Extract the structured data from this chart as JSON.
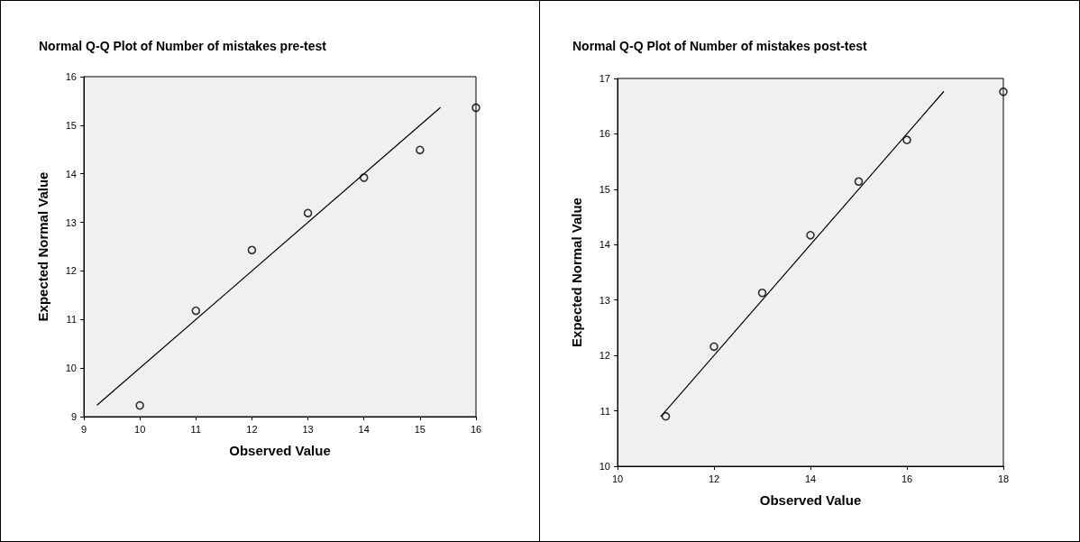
{
  "chart_data": [
    {
      "type": "scatter",
      "title": "Normal Q-Q Plot of Number of mistakes pre-test",
      "xlabel": "Observed Value",
      "ylabel": "Expected Normal Value",
      "xlim": [
        9,
        16
      ],
      "xticks": [
        9,
        10,
        11,
        12,
        13,
        14,
        15,
        16
      ],
      "ylim": [
        9,
        16
      ],
      "yticks": [
        9,
        10,
        11,
        12,
        13,
        14,
        15,
        16
      ],
      "grid": false,
      "marker": "circle",
      "series": [
        {
          "color": "#000000",
          "x": [
            10,
            11,
            12,
            13,
            14,
            15,
            16
          ],
          "values": [
            9.23,
            11.18,
            12.43,
            13.19,
            13.92,
            14.49,
            15.36
          ]
        },
        {
          "type": "line",
          "color": "#000000",
          "marker": "none",
          "line_style": "solid",
          "x": [
            9.24,
            15.36
          ],
          "values": [
            9.24,
            15.36
          ]
        }
      ]
    },
    {
      "type": "scatter",
      "title": "Normal Q-Q Plot of Number of mistakes post-test",
      "xlabel": "Observed Value",
      "ylabel": "Expected Normal Value",
      "xlim": [
        10,
        18
      ],
      "xticks": [
        10,
        12,
        14,
        16,
        18
      ],
      "ylim": [
        10,
        17
      ],
      "yticks": [
        10,
        11,
        12,
        13,
        14,
        15,
        16,
        17
      ],
      "grid": false,
      "marker": "circle",
      "series": [
        {
          "color": "#000000",
          "x": [
            11,
            12,
            13,
            14,
            15,
            16,
            18
          ],
          "values": [
            10.9,
            12.16,
            13.13,
            14.17,
            15.14,
            15.89,
            16.76
          ]
        },
        {
          "type": "line",
          "color": "#000000",
          "marker": "none",
          "line_style": "solid",
          "x": [
            10.9,
            16.76
          ],
          "values": [
            10.9,
            16.76
          ]
        }
      ]
    }
  ]
}
